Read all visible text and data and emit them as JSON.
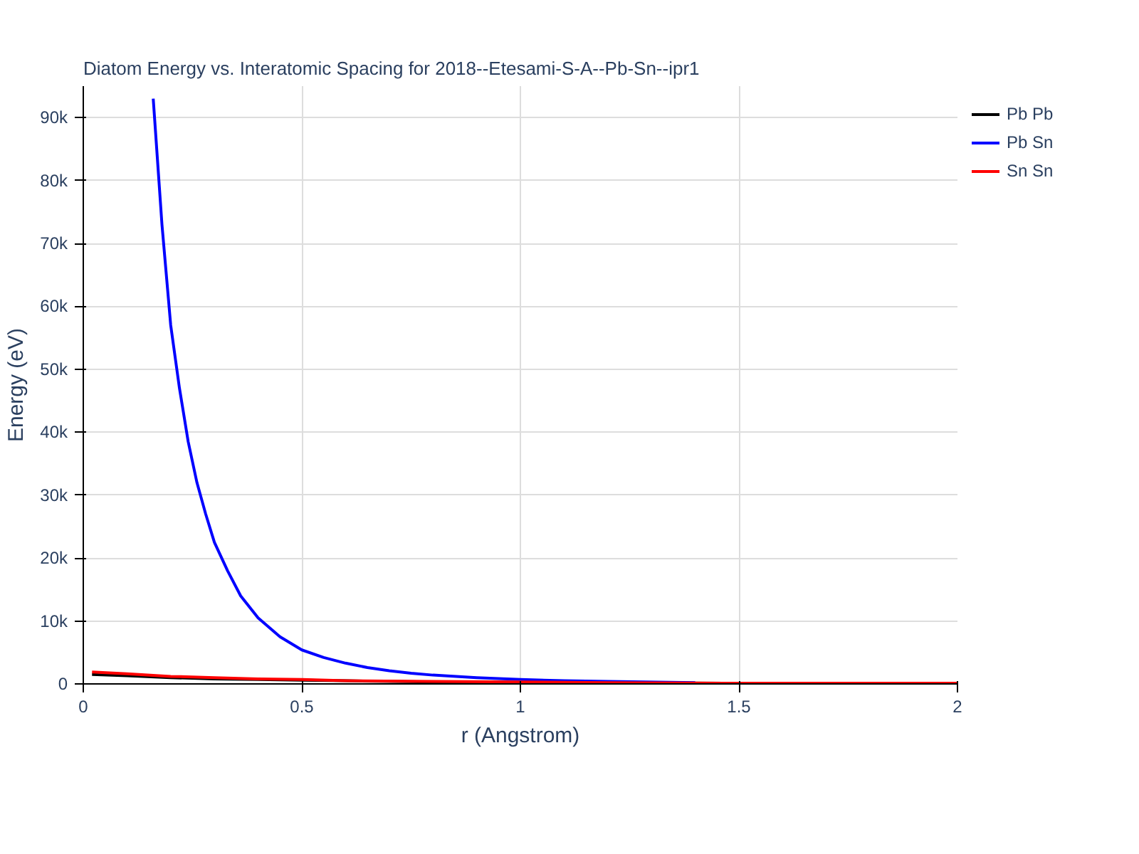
{
  "chart_data": {
    "type": "line",
    "title": "Diatom Energy vs. Interatomic Spacing for 2018--Etesami-S-A--Pb-Sn--ipr1",
    "xlabel": "r (Angstrom)",
    "ylabel": "Energy (eV)",
    "xlim": [
      0,
      2
    ],
    "ylim": [
      0,
      95000
    ],
    "xticks": [
      0,
      0.5,
      1,
      1.5,
      2
    ],
    "yticks": [
      0,
      {
        "value": 10000,
        "label": "10k"
      },
      {
        "value": 20000,
        "label": "20k"
      },
      {
        "value": 30000,
        "label": "30k"
      },
      {
        "value": 40000,
        "label": "40k"
      },
      {
        "value": 50000,
        "label": "50k"
      },
      {
        "value": 60000,
        "label": "60k"
      },
      {
        "value": 70000,
        "label": "70k"
      },
      {
        "value": 80000,
        "label": "80k"
      },
      {
        "value": 90000,
        "label": "90k"
      }
    ],
    "grid": true,
    "legend": "top right",
    "line_style": "solid",
    "marker": "none",
    "series": [
      {
        "name": "Pb Pb",
        "color": "#000000",
        "x": [
          0.02,
          0.1,
          0.2,
          0.3,
          0.4,
          0.5,
          0.6,
          0.8,
          1.0,
          1.2,
          1.5,
          2.0
        ],
        "values": [
          1500,
          1300,
          1000,
          800,
          700,
          600,
          500,
          300,
          200,
          200,
          100,
          100
        ]
      },
      {
        "name": "Pb Sn",
        "color": "#0000ff",
        "x": [
          0.16,
          0.18,
          0.2,
          0.22,
          0.24,
          0.26,
          0.28,
          0.3,
          0.33,
          0.36,
          0.4,
          0.45,
          0.5,
          0.55,
          0.6,
          0.65,
          0.7,
          0.75,
          0.8,
          0.9,
          1.0,
          1.1,
          1.2,
          1.4
        ],
        "values": [
          93000,
          73000,
          57000,
          47000,
          38500,
          32000,
          27000,
          22500,
          18000,
          14000,
          10500,
          7500,
          5400,
          4200,
          3300,
          2600,
          2100,
          1700,
          1400,
          1000,
          700,
          500,
          400,
          200
        ]
      },
      {
        "name": "Sn Sn",
        "color": "#ff0000",
        "x": [
          0.02,
          0.1,
          0.2,
          0.3,
          0.4,
          0.5,
          0.6,
          0.8,
          1.0,
          1.2,
          1.5,
          2.0
        ],
        "values": [
          1900,
          1600,
          1200,
          1000,
          800,
          700,
          500,
          400,
          300,
          200,
          100,
          100
        ]
      }
    ]
  }
}
